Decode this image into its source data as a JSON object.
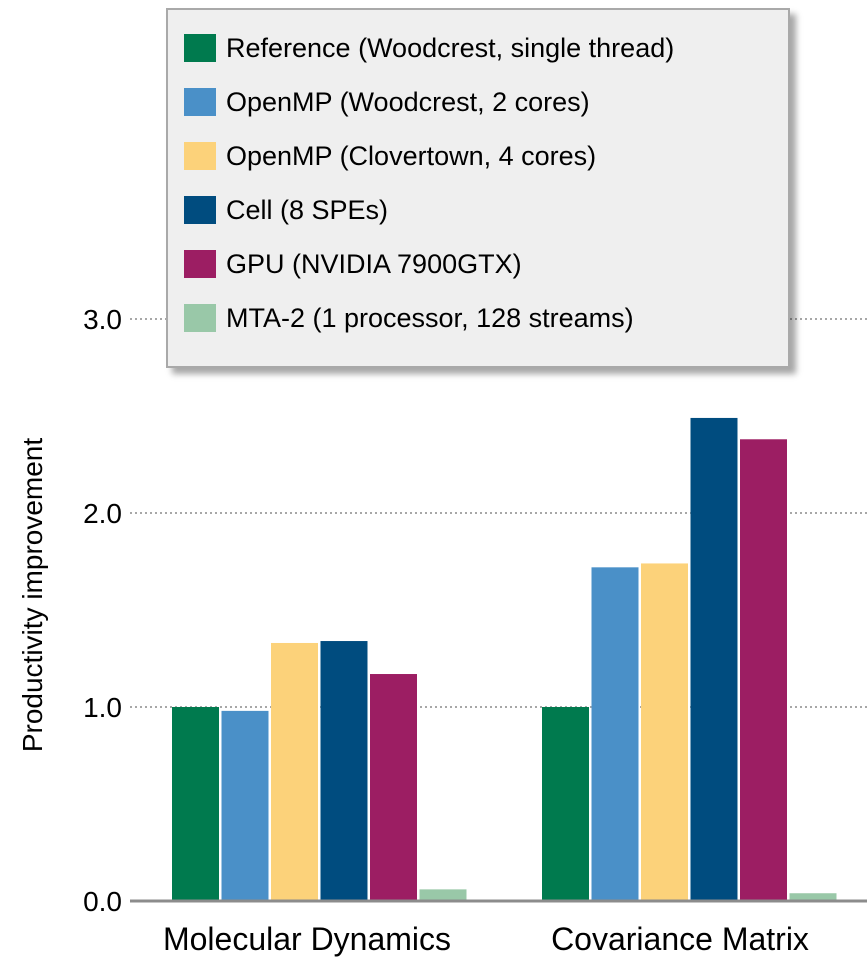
{
  "chart_data": {
    "type": "bar",
    "categories": [
      "Molecular Dynamics",
      "Covariance Matrix"
    ],
    "series": [
      {
        "name": "Reference (Woodcrest, single thread)",
        "color": "#007a4e",
        "values": [
          1.0,
          1.0
        ]
      },
      {
        "name": "OpenMP (Woodcrest, 2 cores)",
        "color": "#4a90c8",
        "values": [
          0.98,
          1.72
        ]
      },
      {
        "name": "OpenMP (Clovertown, 4 cores)",
        "color": "#fcd27a",
        "values": [
          1.33,
          1.74
        ]
      },
      {
        "name": "Cell (8 SPEs)",
        "color": "#004c7f",
        "values": [
          1.34,
          2.49
        ]
      },
      {
        "name": "GPU (NVIDIA 7900GTX)",
        "color": "#9c1e63",
        "values": [
          1.17,
          2.38
        ]
      },
      {
        "name": "MTA-2 (1 processor, 128 streams)",
        "color": "#99c8a8",
        "values": [
          0.06,
          0.04
        ]
      }
    ],
    "yticks": [
      "0.0",
      "1.0",
      "2.0",
      "3.0"
    ],
    "ytick_values": [
      0,
      1,
      2,
      3
    ],
    "ylabel": "Productivity improvement",
    "xlabel": "",
    "ylim": [
      0,
      3.0
    ],
    "grid": "dotted horizontal",
    "legend_position": "top-center"
  }
}
